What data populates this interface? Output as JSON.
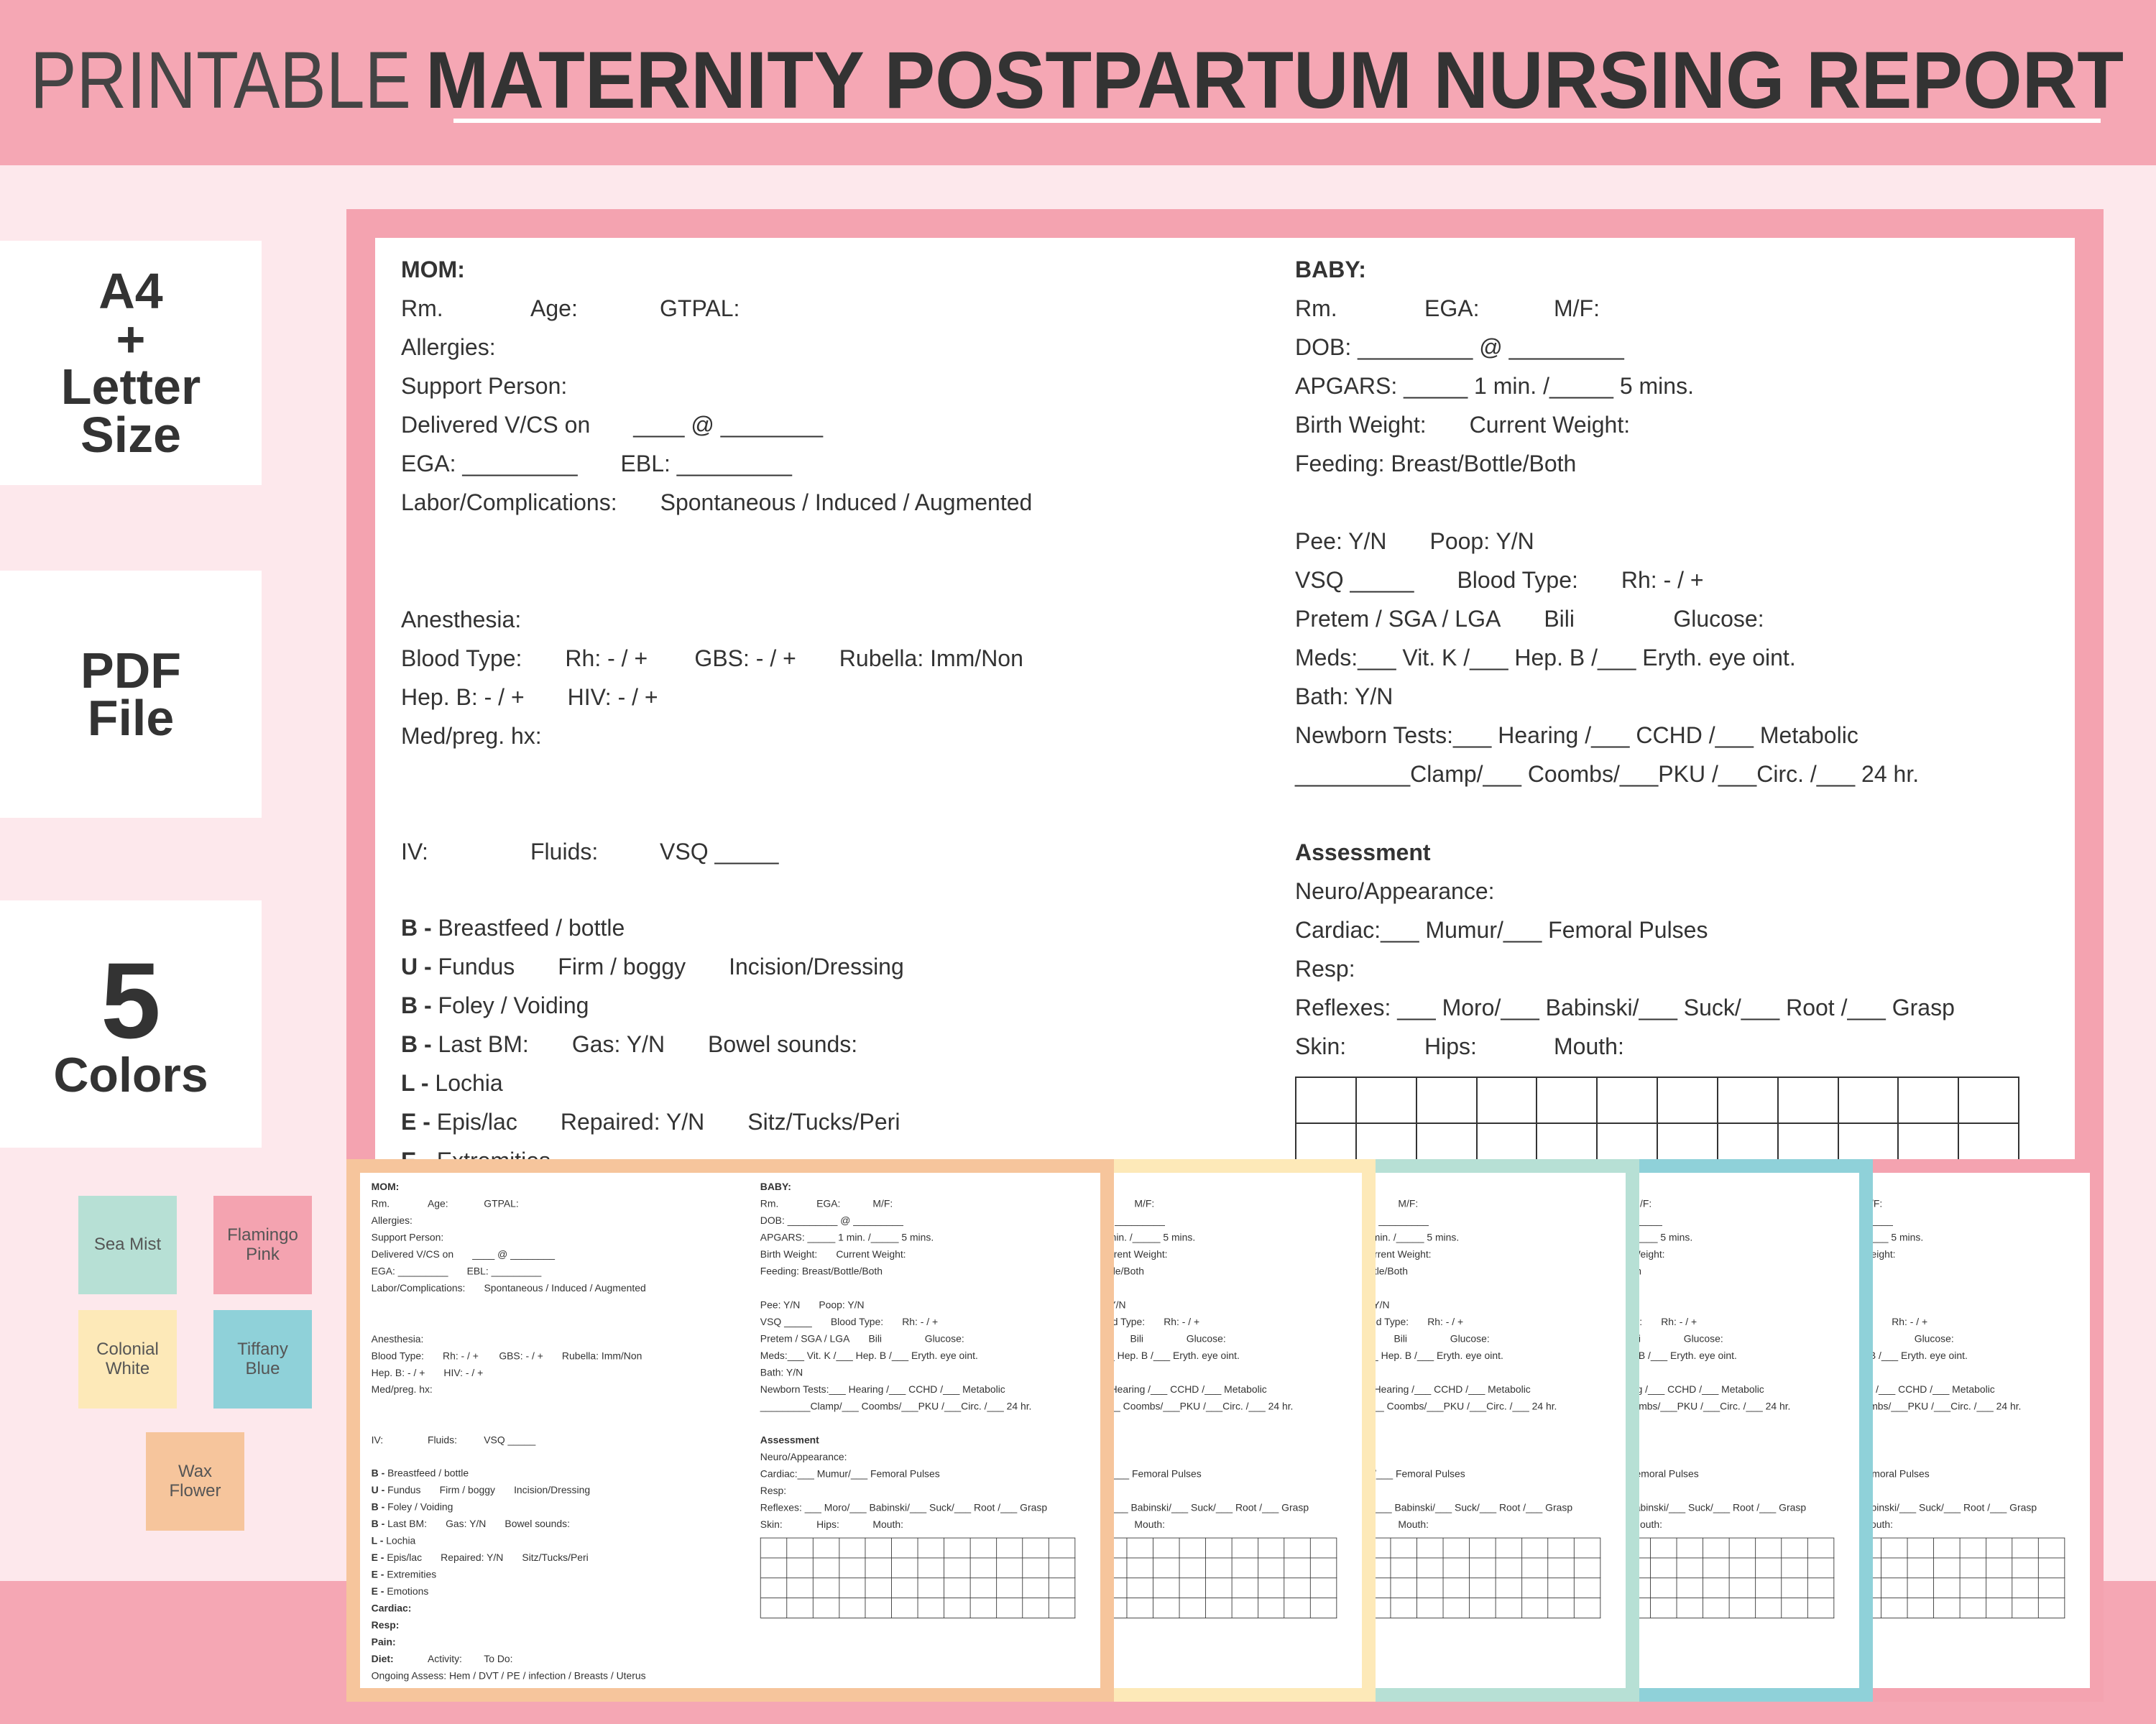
{
  "header": {
    "title_light": "PRINTABLE",
    "title_bold": "MATERNITY POSTPARTUM NURSING REPORT"
  },
  "features": [
    {
      "lines": [
        "A4",
        "+",
        "Letter",
        "Size"
      ]
    },
    {
      "lines": [
        "PDF",
        "File"
      ]
    },
    {
      "lines": [
        "5",
        "Colors"
      ]
    }
  ],
  "colors": [
    {
      "name": "Sea Mist",
      "color": "#b7e0d5"
    },
    {
      "name": "Flamingo Pink",
      "color": "#f4a3b0"
    },
    {
      "name": "Colonial White",
      "color": "#fde9b8"
    },
    {
      "name": "Tiffany Blue",
      "color": "#8fd1d9"
    },
    {
      "name": "Wax Flower",
      "color": "#f6c59c"
    }
  ],
  "form": {
    "mom": [
      [
        [
          {
            "b": "MOM:"
          }
        ],
        [
          "Rm.",
          "Age:",
          "GTPAL:"
        ],
        [
          "Allergies:"
        ],
        [
          "Support Person:"
        ],
        [
          "Delivered V/CS on",
          "____ @ ________"
        ],
        [
          "EGA: _________",
          "EBL: _________"
        ],
        [
          "Labor/Complications:",
          "Spontaneous / Induced / Augmented"
        ]
      ],
      [
        [
          "Anesthesia:"
        ],
        [
          "Blood Type:",
          "Rh: - / +",
          "GBS: - / +",
          "Rubella: Imm/Non"
        ],
        [
          "Hep. B: - / +",
          "HIV: - / +"
        ],
        [
          "Med/preg. hx:"
        ]
      ],
      [
        [
          "IV:",
          "Fluids:",
          "VSQ _____"
        ]
      ],
      [
        [
          {
            "b": "B -",
            "t": "Breastfeed / bottle"
          }
        ],
        [
          {
            "b": "U -",
            "t": "Fundus"
          },
          "Firm / boggy",
          "Incision/Dressing"
        ],
        [
          {
            "b": "B -",
            "t": "Foley / Voiding"
          }
        ],
        [
          {
            "b": "B -",
            "t": "Last BM:"
          },
          "Gas: Y/N",
          "Bowel sounds:"
        ],
        [
          {
            "b": "L -",
            "t": "Lochia"
          }
        ],
        [
          {
            "b": "E -",
            "t": "Epis/lac"
          },
          "Repaired: Y/N",
          "Sitz/Tucks/Peri"
        ],
        [
          {
            "b": "E -",
            "t": "Extremities"
          }
        ],
        [
          {
            "b": "E -",
            "t": "Emotions"
          }
        ],
        [
          {
            "b": "Cardiac:"
          }
        ],
        [
          {
            "b": "Resp:"
          }
        ],
        [
          {
            "b": "Pain:"
          }
        ],
        [
          {
            "b": "Diet:"
          },
          "Activity:",
          "To Do:"
        ],
        [
          "Ongoing Assess: Hem / DVT / PE / infection / Breasts / Uterus"
        ]
      ]
    ],
    "baby": [
      [
        [
          {
            "b": "BABY:"
          }
        ],
        [
          "Rm.",
          "EGA:",
          "M/F:"
        ],
        [
          "DOB: _________ @ _________"
        ],
        [
          "APGARS: _____ 1 min. /_____ 5 mins."
        ],
        [
          "Birth Weight:",
          "Current Weight:"
        ],
        [
          "Feeding: Breast/Bottle/Both"
        ]
      ],
      [
        [
          "Pee: Y/N",
          "Poop: Y/N"
        ],
        [
          "VSQ _____",
          "Blood Type:",
          "Rh: - / +"
        ],
        [
          "Pretem / SGA / LGA",
          "Bili",
          "Glucose:"
        ],
        [
          "Meds:___ Vit. K /___ Hep. B /___ Eryth. eye oint."
        ],
        [
          "Bath: Y/N"
        ],
        [
          "Newborn Tests:___ Hearing /___ CCHD /___ Metabolic"
        ],
        [
          "_________Clamp/___ Coombs/___PKU /___Circ. /___ 24 hr."
        ]
      ],
      [
        [
          {
            "b": "Assessment"
          }
        ],
        [
          "Neuro/Appearance:"
        ],
        [
          "Cardiac:___ Mumur/___ Femoral Pulses"
        ],
        [
          "Resp:"
        ],
        [
          "Reflexes: ___ Moro/___ Babinski/___ Suck/___ Root /___ Grasp"
        ],
        [
          "Skin:",
          "Hips:",
          "Mouth:"
        ]
      ]
    ]
  }
}
